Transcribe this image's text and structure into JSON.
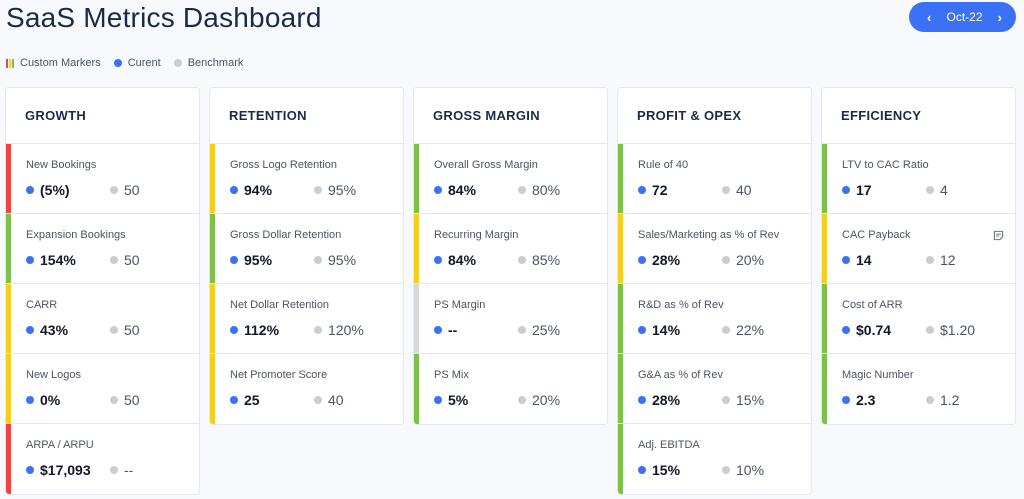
{
  "title": "SaaS Metrics Dashboard",
  "period": {
    "label": "Oct-22",
    "prev_icon": "chevron-left-icon",
    "next_icon": "chevron-right-icon"
  },
  "legend": {
    "custom_markers": "Custom Markers",
    "current": "Curent",
    "benchmark": "Benchmark"
  },
  "colors": {
    "red": "#f04444",
    "green": "#7cc24a",
    "yellow": "#f5cf1f",
    "gray": "#d5d8dc",
    "current": "#3b72f5",
    "benchmark": "#c9cdd3",
    "accent": "#3b72f5"
  },
  "columns": [
    {
      "title": "GROWTH",
      "metrics": [
        {
          "label": "New Bookings",
          "current": "(5%)",
          "benchmark": "50",
          "status": "red"
        },
        {
          "label": "Expansion Bookings",
          "current": "154%",
          "benchmark": "50",
          "status": "green"
        },
        {
          "label": "CARR",
          "current": "43%",
          "benchmark": "50",
          "status": "yellow"
        },
        {
          "label": "New Logos",
          "current": "0%",
          "benchmark": "50",
          "status": "yellow"
        },
        {
          "label": "ARPA / ARPU",
          "current": "$17,093",
          "benchmark": "--",
          "status": "red"
        }
      ]
    },
    {
      "title": "RETENTION",
      "metrics": [
        {
          "label": "Gross Logo Retention",
          "current": "94%",
          "benchmark": "95%",
          "status": "yellow"
        },
        {
          "label": "Gross Dollar Retention",
          "current": "95%",
          "benchmark": "95%",
          "status": "green"
        },
        {
          "label": "Net Dollar Retention",
          "current": "112%",
          "benchmark": "120%",
          "status": "yellow"
        },
        {
          "label": "Net Promoter Score",
          "current": "25",
          "benchmark": "40",
          "status": "yellow"
        }
      ]
    },
    {
      "title": "GROSS MARGIN",
      "metrics": [
        {
          "label": "Overall Gross Margin",
          "current": "84%",
          "benchmark": "80%",
          "status": "green"
        },
        {
          "label": "Recurring Margin",
          "current": "84%",
          "benchmark": "85%",
          "status": "yellow"
        },
        {
          "label": "PS Margin",
          "current": "--",
          "benchmark": "25%",
          "status": "gray"
        },
        {
          "label": "PS Mix",
          "current": "5%",
          "benchmark": "20%",
          "status": "green"
        }
      ]
    },
    {
      "title": "PROFIT & OPEX",
      "metrics": [
        {
          "label": "Rule of 40",
          "current": "72",
          "benchmark": "40",
          "status": "green"
        },
        {
          "label": "Sales/Marketing as % of Rev",
          "current": "28%",
          "benchmark": "20%",
          "status": "yellow"
        },
        {
          "label": "R&D as % of Rev",
          "current": "14%",
          "benchmark": "22%",
          "status": "green"
        },
        {
          "label": "G&A as % of Rev",
          "current": "28%",
          "benchmark": "15%",
          "status": "green"
        },
        {
          "label": "Adj. EBITDA",
          "current": "15%",
          "benchmark": "10%",
          "status": "green"
        }
      ]
    },
    {
      "title": "EFFICIENCY",
      "metrics": [
        {
          "label": "LTV to CAC Ratio",
          "current": "17",
          "benchmark": "4",
          "status": "green"
        },
        {
          "label": "CAC Payback",
          "current": "14",
          "benchmark": "12",
          "status": "yellow",
          "note_icon": "note-icon"
        },
        {
          "label": "Cost of ARR",
          "current": "$0.74",
          "benchmark": "$1.20",
          "status": "green"
        },
        {
          "label": "Magic Number",
          "current": "2.3",
          "benchmark": "1.2",
          "status": "green"
        }
      ]
    }
  ]
}
